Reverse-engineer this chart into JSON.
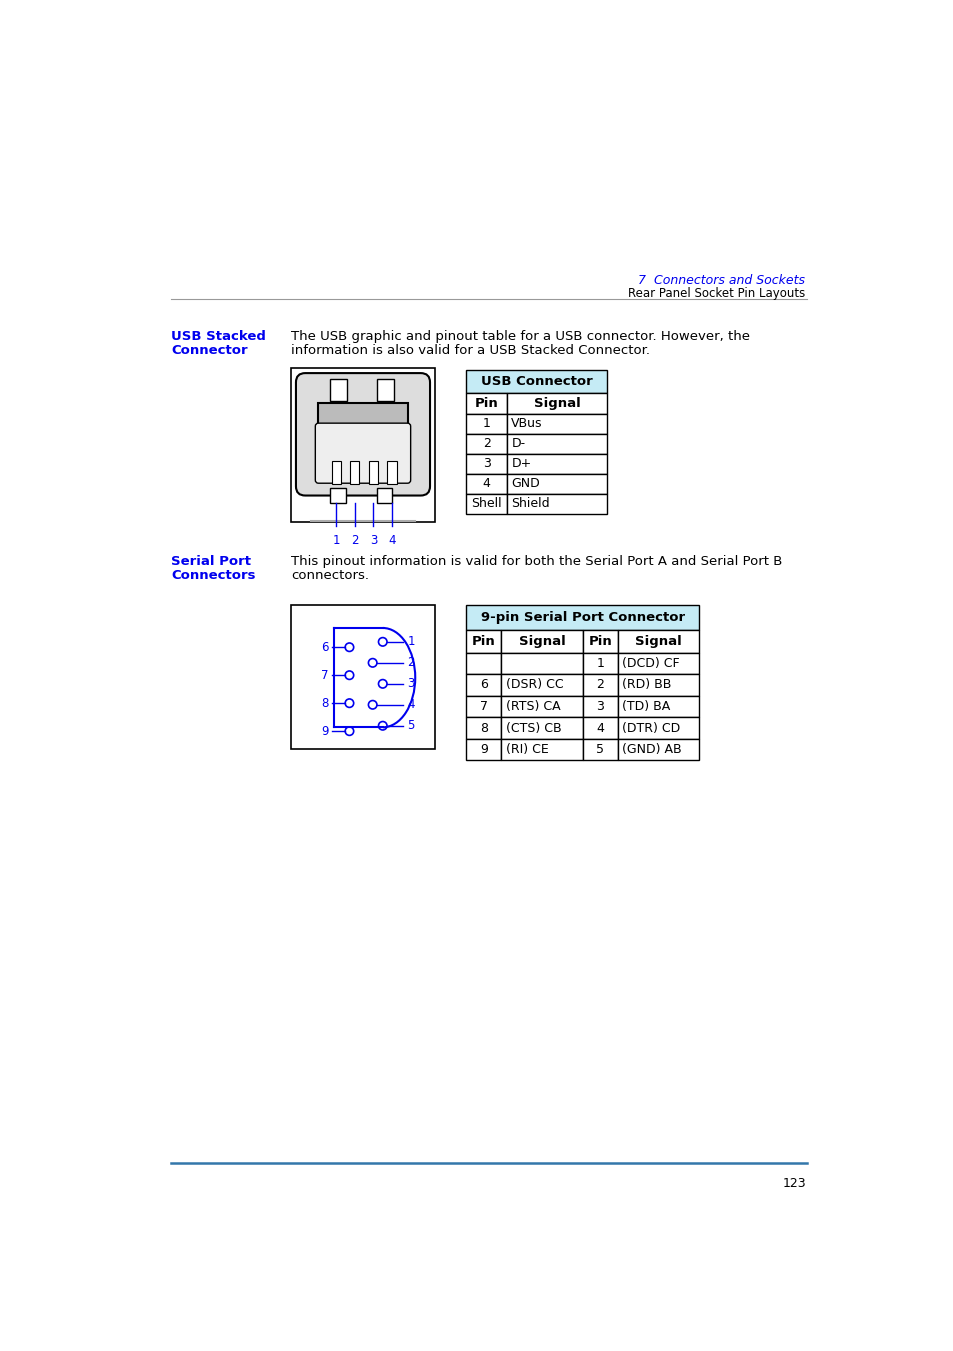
{
  "page_number": "123",
  "header_chapter": "7  Connectors and Sockets",
  "header_sub": "Rear Panel Socket Pin Layouts",
  "section1_title_line1": "USB Stacked",
  "section1_title_line2": "Connector",
  "section1_body_line1": "The USB graphic and pinout table for a USB connector. However, the",
  "section1_body_line2": "information is also valid for a USB Stacked Connector.",
  "usb_table_header": "USB Connector",
  "usb_table_cols": [
    "Pin",
    "Signal"
  ],
  "usb_table_rows": [
    [
      "1",
      "VBus"
    ],
    [
      "2",
      "D-"
    ],
    [
      "3",
      "D+"
    ],
    [
      "4",
      "GND"
    ],
    [
      "Shell",
      "Shield"
    ]
  ],
  "section2_title_line1": "Serial Port",
  "section2_title_line2": "Connectors",
  "section2_body_line1": "This pinout information is valid for both the Serial Port A and Serial Port B",
  "section2_body_line2": "connectors.",
  "serial_table_header": "9-pin Serial Port Connector",
  "serial_table_cols": [
    "Pin",
    "Signal",
    "Pin",
    "Signal"
  ],
  "serial_table_rows": [
    [
      "",
      "",
      "1",
      "(DCD) CF"
    ],
    [
      "6",
      "(DSR) CC",
      "2",
      "(RD) BB"
    ],
    [
      "7",
      "(RTS) CA",
      "3",
      "(TD) BA"
    ],
    [
      "8",
      "(CTS) CB",
      "4",
      "(DTR) CD"
    ],
    [
      "9",
      "(RI) CE",
      "5",
      "(GND) AB"
    ]
  ],
  "blue_color": "#0000EE",
  "table_header_bg": "#C5EBF5",
  "black": "#000000",
  "gray": "#888888"
}
